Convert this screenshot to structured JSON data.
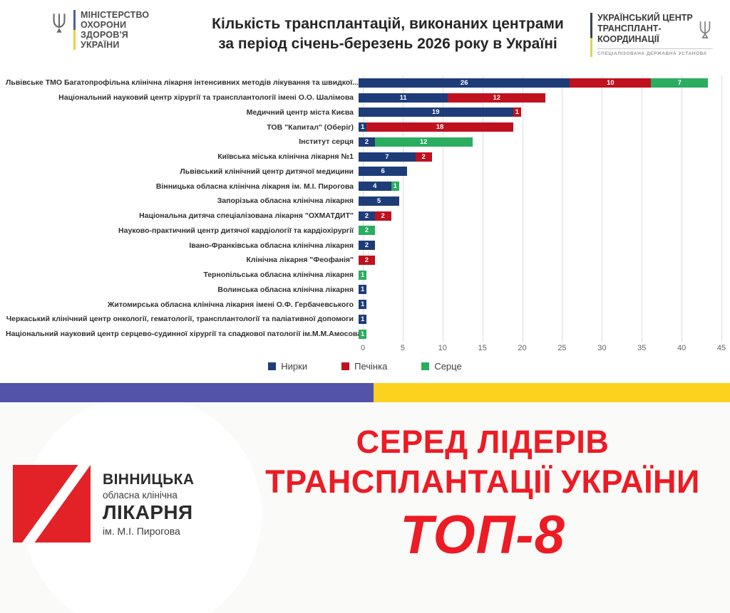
{
  "header": {
    "moh_logo": {
      "lines": [
        "МІНІСТЕРСТВО",
        "ОХОРОНИ",
        "ЗДОРОВ'Я",
        "УКРАЇНИ"
      ]
    },
    "title_line1": "Кількість трансплантацій, виконаних центрами",
    "title_line2": "за період січень-березень 2026 року в Україні",
    "uctc_logo": {
      "lines": [
        "УКРАЇНСЬКИЙ ЦЕНТР",
        "ТРАНСПЛАНТ-",
        "КООРДИНАЦІЇ"
      ],
      "subtitle": "СПЕЦІАЛІЗОВАНА ДЕРЖАВНА УСТАНОВА"
    }
  },
  "chart_data": {
    "type": "bar",
    "orientation": "horizontal",
    "stacked": true,
    "grid": true,
    "legend_position": "bottom",
    "xlim": [
      0,
      45
    ],
    "xticks": [
      0,
      5,
      10,
      15,
      20,
      25,
      30,
      35,
      40,
      45
    ],
    "categories": [
      "Львівське ТМО Багатопрофільна клінічна лікарня інтенсивних методів лікування та швидкої...",
      "Національний науковий центр хірургії та трансплантології імені О.О. Шалімова",
      "Медичний центр міста Києва",
      "ТОВ \"Капитал\" (Оберіг)",
      "Інститут серця",
      "Київська міська клінічна лікарня №1",
      "Львівський клінічний центр дитячої медицини",
      "Вінницька обласна клінічна лікарня ім. М.І. Пирогова",
      "Запорізька обласна клінічна лікарня",
      "Національна дитяча спеціалізована лікарня \"ОХМАТДИТ\"",
      "Науково-практичний центр дитячої кардіології та кардіохірургії",
      "Івано-Франківська обласна клінічна лікарня",
      "Клінічна лікарня \"Феофанія\"",
      "Тернопільська обласна клінічна лікарня",
      "Волинська обласна клінічна лікарня",
      "Житомирська обласна клінічна лікарня імені О.Ф. Гербачевського",
      "Черкаський клінічний центр онкології, гематології, трансплантології та паліативної допомоги",
      "Національний науковий центр серцево-судинної хірургії та спадкової патології ім.М.М.Амосова"
    ],
    "series": [
      {
        "name": "Нирки",
        "color": "#1e3c78",
        "values": [
          26,
          11,
          19,
          1,
          2,
          7,
          6,
          4,
          5,
          2,
          0,
          2,
          0,
          0,
          1,
          1,
          1,
          0
        ]
      },
      {
        "name": "Печінка",
        "color": "#c0111f",
        "values": [
          10,
          12,
          1,
          18,
          0,
          2,
          0,
          0,
          0,
          2,
          0,
          0,
          2,
          0,
          0,
          0,
          0,
          0
        ]
      },
      {
        "name": "Серце",
        "color": "#2aad5f",
        "values": [
          7,
          0,
          0,
          0,
          12,
          0,
          0,
          1,
          0,
          0,
          2,
          0,
          0,
          1,
          0,
          0,
          0,
          1
        ]
      }
    ]
  },
  "divider": {
    "left_color": "#5353a9",
    "right_color": "#fdd21e"
  },
  "banner": {
    "logo": {
      "title1": "ВІННИЦЬКА",
      "subtitle1": "обласна клінічна",
      "title2": "ЛІКАРНЯ",
      "subtitle2": "ім. М.І. Пирогова",
      "square_color": "#e32227"
    },
    "headline_line1": "СЕРЕД ЛІДЕРІВ",
    "headline_line2": "ТРАНСПЛАНТАЦІЇ УКРАЇНИ",
    "headline_line3": "ТОП-8",
    "text_color": "#ed1b24"
  }
}
